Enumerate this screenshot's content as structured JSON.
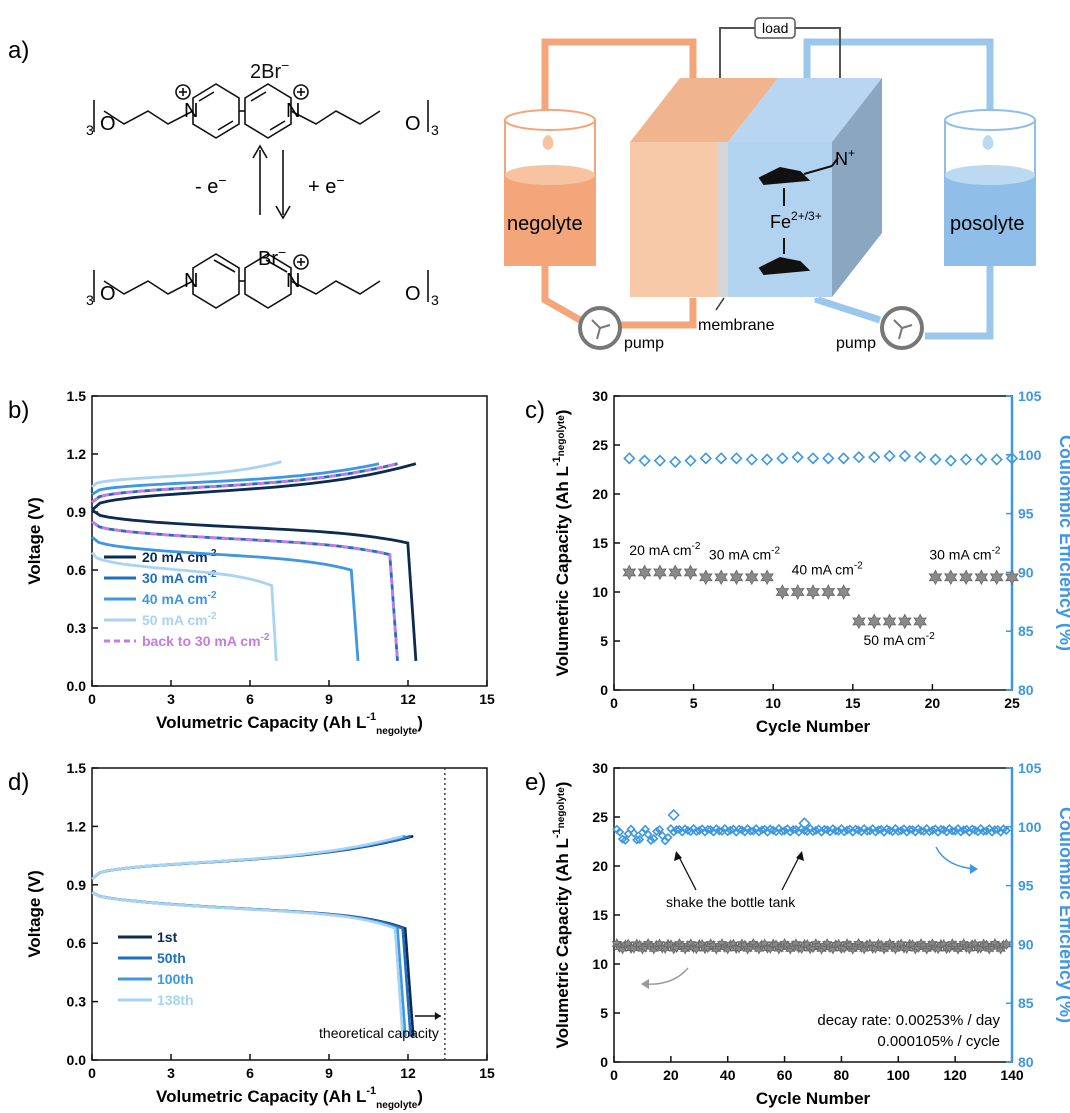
{
  "panel_labels": {
    "a": "a)",
    "b": "b)",
    "c": "c)",
    "d": "d)",
    "e": "e)"
  },
  "schematic": {
    "counter_ion_top": "2Br",
    "counter_ion_bottom": "Br",
    "minus_e": "- e",
    "plus_e": "+ e",
    "charge_superscript": "−",
    "repeat_subscript": "3",
    "oxygen": "O",
    "nitrogen": "N",
    "load": "load",
    "negolyte": "negolyte",
    "posolyte": "posolyte",
    "pump_left": "pump",
    "pump_right": "pump",
    "membrane": "membrane",
    "fe_label": "Fe",
    "fe_charge": "2+/3+",
    "n_plus": "N",
    "plus_sign": "+",
    "colors": {
      "negolyte": "#f2a67a",
      "posolyte": "#8fbfe8",
      "cell_neg": "#f5c09c",
      "cell_pos": "#a9cdee"
    }
  },
  "chart_data": [
    {
      "id": "b",
      "type": "line",
      "xlabel": "Volumetric Capacity (Ah L",
      "xlabel_sup": "-1",
      "xlabel_sub": "negolyte",
      "ylabel": "Voltage (V)",
      "xlim": [
        0,
        15
      ],
      "ylim": [
        0,
        1.5
      ],
      "xticks": [
        "0",
        "3",
        "6",
        "9",
        "12",
        "15"
      ],
      "yticks": [
        "0.0",
        "0.3",
        "0.6",
        "0.9",
        "1.2",
        "1.5"
      ],
      "legend_position": "bottom-left",
      "series": [
        {
          "name": "20 mA cm",
          "sup": "-2",
          "color": "#0d2a4f",
          "dashed": false,
          "charge_end": [
            12.3,
            1.15
          ],
          "discharge_end": [
            12.3,
            0.13
          ],
          "charge_start_v": 0.91,
          "discharge_start_v": 0.91
        },
        {
          "name": "30 mA cm",
          "sup": "-2",
          "color": "#1f6fc1",
          "dashed": false,
          "charge_end": [
            11.6,
            1.15
          ],
          "discharge_end": [
            11.6,
            0.13
          ],
          "charge_start_v": 0.95,
          "discharge_start_v": 0.85
        },
        {
          "name": "40 mA cm",
          "sup": "-2",
          "color": "#3d97e3",
          "dashed": false,
          "charge_end": [
            10.9,
            1.15
          ],
          "discharge_end": [
            10.1,
            0.13
          ],
          "charge_start_v": 0.99,
          "discharge_start_v": 0.77
        },
        {
          "name": "50 mA cm",
          "sup": "-2",
          "color": "#a9d3f2",
          "dashed": false,
          "charge_end": [
            7.2,
            1.16
          ],
          "discharge_end": [
            7.0,
            0.13
          ],
          "charge_start_v": 1.03,
          "discharge_start_v": 0.69
        },
        {
          "name": "back to 30 mA cm",
          "sup": "-2",
          "color": "#c77ae0",
          "dashed": true,
          "charge_end": [
            11.6,
            1.15
          ],
          "discharge_end": [
            11.6,
            0.13
          ],
          "charge_start_v": 0.95,
          "discharge_start_v": 0.85
        }
      ]
    },
    {
      "id": "c",
      "type": "scatter",
      "xlabel": "Cycle Number",
      "ylabel": "Volumetric Capacity (Ah L",
      "ylabel_sup": "-1",
      "ylabel_sub": "negolyte",
      "ylabel_close": ")",
      "y2label": "Coulombic Efficiency (%)",
      "xlim": [
        0,
        26
      ],
      "ylim": [
        0,
        30
      ],
      "y2lim": [
        80,
        105
      ],
      "xticks": [
        "0",
        "5",
        "10",
        "15",
        "20",
        "25"
      ],
      "yticks": [
        "0",
        "5",
        "10",
        "15",
        "20",
        "25",
        "30"
      ],
      "y2ticks": [
        "80",
        "85",
        "90",
        "95",
        "100",
        "105"
      ],
      "capacity": {
        "x": [
          1,
          2,
          3,
          4,
          5,
          6,
          7,
          8,
          9,
          10,
          11,
          12,
          13,
          14,
          15,
          16,
          17,
          18,
          19,
          20,
          21,
          22,
          23,
          24,
          25,
          26
        ],
        "y": [
          12.0,
          12.0,
          12.0,
          12.0,
          12.0,
          11.5,
          11.5,
          11.5,
          11.5,
          11.5,
          10.0,
          10.0,
          10.0,
          10.0,
          10.0,
          7.0,
          7.0,
          7.0,
          7.0,
          7.0,
          11.5,
          11.5,
          11.5,
          11.5,
          11.5,
          11.5
        ]
      },
      "efficiency": {
        "x": [
          1,
          2,
          3,
          4,
          5,
          6,
          7,
          8,
          9,
          10,
          11,
          12,
          13,
          14,
          15,
          16,
          17,
          18,
          19,
          20,
          21,
          22,
          23,
          24,
          25,
          26
        ],
        "y": [
          99.7,
          99.5,
          99.5,
          99.4,
          99.5,
          99.7,
          99.7,
          99.7,
          99.6,
          99.6,
          99.7,
          99.8,
          99.7,
          99.7,
          99.7,
          99.8,
          99.8,
          99.9,
          99.9,
          99.8,
          99.6,
          99.5,
          99.6,
          99.6,
          99.6,
          99.7
        ]
      },
      "annotations": [
        {
          "text": "20 mA cm",
          "sup": "-2",
          "x": 1,
          "y": 13.8
        },
        {
          "text": "30 mA cm",
          "sup": "-2",
          "x": 6.2,
          "y": 13.3
        },
        {
          "text": "40 mA cm",
          "sup": "-2",
          "x": 11.6,
          "y": 11.8
        },
        {
          "text": "50 mA cm",
          "sup": "-2",
          "x": 16.3,
          "y": 4.6
        },
        {
          "text": "30 mA cm",
          "sup": "-2",
          "x": 20.6,
          "y": 13.3
        }
      ]
    },
    {
      "id": "d",
      "type": "line",
      "xlabel": "Volumetric Capacity (Ah L",
      "xlabel_sup": "-1",
      "xlabel_sub": "negolyte",
      "ylabel": "Voltage (V)",
      "xlim": [
        0,
        15
      ],
      "ylim": [
        0,
        1.5
      ],
      "xticks": [
        "0",
        "3",
        "6",
        "9",
        "12",
        "15"
      ],
      "yticks": [
        "0.0",
        "0.3",
        "0.6",
        "0.9",
        "1.2",
        "1.5"
      ],
      "legend_position": "bottom-left",
      "theoretical_capacity": 13.4,
      "theoretical_label": "theoretical capacity",
      "series": [
        {
          "name": "1st",
          "color": "#0d2a4f",
          "end": 12.2
        },
        {
          "name": "50th",
          "color": "#1f6fc1",
          "end": 12.1
        },
        {
          "name": "100th",
          "color": "#3d97e3",
          "end": 11.9
        },
        {
          "name": "138th",
          "color": "#a9d3f2",
          "end": 11.8
        }
      ]
    },
    {
      "id": "e",
      "type": "scatter",
      "xlabel": "Cycle Number",
      "ylabel": "Volumetric Capacity (Ah L",
      "ylabel_sup": "-1",
      "ylabel_sub": "negolyte",
      "ylabel_close": ")",
      "y2label": "Coulombic Efficiency (%)",
      "xlim": [
        0,
        140
      ],
      "ylim": [
        0,
        30
      ],
      "y2lim": [
        80,
        105
      ],
      "xticks": [
        "0",
        "20",
        "40",
        "60",
        "80",
        "100",
        "120",
        "140"
      ],
      "yticks": [
        "0",
        "5",
        "10",
        "15",
        "20",
        "25",
        "30"
      ],
      "y2ticks": [
        "80",
        "85",
        "90",
        "95",
        "100",
        "105"
      ],
      "capacity_level": 11.8,
      "efficiency_level": 99.7,
      "efficiency_spikes": [
        {
          "x": 21,
          "y": 101.0
        },
        {
          "x": 67,
          "y": 100.3
        }
      ],
      "annotation": "shake the bottle tank",
      "decay_day": "decay rate: 0.00253% / day",
      "decay_cycle": "0.000105% / cycle"
    }
  ]
}
